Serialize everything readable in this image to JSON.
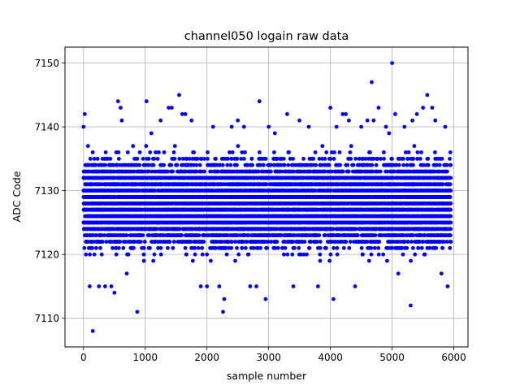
{
  "chart_data": {
    "type": "scatter",
    "title": "channel050 logain raw data",
    "xlabel": "sample number",
    "ylabel": "ADC Code",
    "xlim": [
      -300,
      6230
    ],
    "ylim": [
      7105.5,
      7152.5
    ],
    "xticks": [
      0,
      1000,
      2000,
      3000,
      4000,
      5000,
      6000
    ],
    "yticks": [
      7110,
      7120,
      7130,
      7140,
      7150
    ],
    "grid": true,
    "marker_color": "#0000ff",
    "n_samples": 5950,
    "main_band": {
      "min": 7119,
      "max": 7137
    },
    "series": [
      {
        "x": [
          0,
          20,
          40,
          100,
          150,
          250,
          350,
          450,
          500,
          560,
          600,
          620,
          700,
          870,
          1020,
          1100,
          1250,
          1380,
          1430,
          1550,
          1600,
          1650,
          1750,
          1900,
          2000,
          2100,
          2200,
          2260,
          2280,
          2400,
          2500,
          2600,
          2700,
          2800,
          2850,
          2950,
          3000,
          3100,
          3300,
          3400,
          3500,
          3650,
          3800,
          4000,
          4050,
          4100,
          4200,
          4250,
          4300,
          4400,
          4500,
          4600,
          4670,
          4700,
          4780,
          4900,
          4950,
          5000,
          5050,
          5100,
          5200,
          5300,
          5330,
          5400,
          5500,
          5570,
          5650,
          5700,
          5800,
          5860,
          5900
        ],
        "y": [
          7140,
          7142,
          7120,
          7115,
          7108,
          7115,
          7115,
          7115,
          7114,
          7144,
          7143,
          7141,
          7117,
          7111,
          7144,
          7139,
          7141,
          7143,
          7143,
          7145,
          7142,
          7142,
          7141,
          7115,
          7115,
          7140,
          7115,
          7111,
          7113,
          7140,
          7141,
          7140,
          7115,
          7115,
          7144,
          7113,
          7140,
          7139,
          7142,
          7115,
          7141,
          7140,
          7115,
          7143,
          7113,
          7140,
          7142,
          7142,
          7141,
          7115,
          7140,
          7141,
          7147,
          7141,
          7143,
          7140,
          7139,
          7150,
          7142,
          7117,
          7140,
          7112,
          7141,
          7142,
          7143,
          7145,
          7143,
          7141,
          7117,
          7140,
          7115
        ]
      }
    ]
  }
}
